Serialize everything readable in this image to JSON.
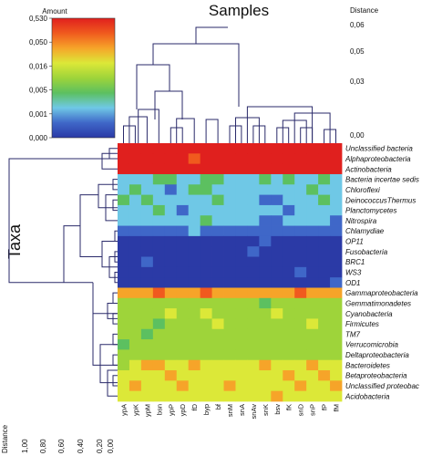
{
  "chart_data": {
    "type": "heatmap",
    "title": "Samples",
    "ylabel": "Taxa",
    "legend": {
      "title": "Amount",
      "ticks": [
        "0,530",
        "0,050",
        "0,016",
        "0,005",
        "0,001",
        "0,000"
      ],
      "placement": "top-left"
    },
    "colors": {
      "scale": [
        "#2b3aa6",
        "#3f67c8",
        "#6fc8e6",
        "#5cc060",
        "#9ed43a",
        "#dce838",
        "#f6a429",
        "#f05a1e",
        "#e0201e"
      ]
    },
    "top_distance_axis": {
      "label": "Distance",
      "ticks": [
        "0,06",
        "0,05",
        "0,03",
        "0,00"
      ]
    },
    "left_distance_axis": {
      "label": "Distance",
      "ticks": [
        "1,00",
        "0,80",
        "0,60",
        "0,40",
        "0,20",
        "0,00"
      ]
    },
    "columns": [
      "ypA",
      "ypK",
      "ypM",
      "bsn",
      "ypP",
      "ypD",
      "fD",
      "byp",
      "bf",
      "snM",
      "snA",
      "snAv",
      "snK",
      "bsv",
      "fK",
      "snD",
      "snP",
      "fP",
      "fM"
    ],
    "rows": [
      "Unclassified bacteria",
      "Alphaproteobacteria",
      "Actinobacteria",
      "Bacteria incertae sedis",
      "Chloroflexi",
      "DeinococcusThermus",
      "Planctomycetes",
      "Nitrospira",
      "Chlamydiae",
      "OP11",
      "Fusobacteria",
      "BRC1",
      "WS3",
      "OD1",
      "Gammaproteobacteria",
      "Gemmatimonadetes",
      "Cyanobacteria",
      "Firmicutes",
      "TM7",
      "Verrucomicrobia",
      "Deltaproteobacteria",
      "Bacteroidetes",
      "Betaproteobacteria",
      "Unclassified proteobac",
      "Acidobacteria"
    ],
    "values": [
      [
        8,
        8,
        8,
        8,
        8,
        8,
        8,
        8,
        8,
        8,
        8,
        8,
        8,
        8,
        8,
        8,
        8,
        8,
        8
      ],
      [
        8,
        8,
        8,
        8,
        8,
        8,
        7,
        8,
        8,
        8,
        8,
        8,
        8,
        8,
        8,
        8,
        8,
        8,
        8
      ],
      [
        8,
        8,
        8,
        8,
        8,
        8,
        8,
        8,
        8,
        8,
        8,
        8,
        8,
        8,
        8,
        8,
        8,
        8,
        8
      ],
      [
        2,
        2,
        2,
        3,
        3,
        2,
        2,
        3,
        3,
        2,
        2,
        2,
        3,
        2,
        3,
        2,
        2,
        3,
        2
      ],
      [
        2,
        3,
        2,
        2,
        1,
        2,
        3,
        3,
        2,
        2,
        2,
        2,
        2,
        2,
        2,
        2,
        3,
        2,
        2
      ],
      [
        3,
        2,
        3,
        2,
        2,
        2,
        2,
        2,
        3,
        2,
        2,
        2,
        1,
        1,
        2,
        2,
        2,
        3,
        2
      ],
      [
        2,
        2,
        2,
        3,
        2,
        1,
        2,
        2,
        2,
        2,
        2,
        2,
        2,
        2,
        1,
        2,
        2,
        2,
        2
      ],
      [
        2,
        2,
        2,
        2,
        2,
        2,
        2,
        3,
        2,
        2,
        2,
        2,
        1,
        1,
        2,
        2,
        2,
        2,
        1
      ],
      [
        1,
        1,
        1,
        1,
        1,
        1,
        2,
        1,
        1,
        1,
        1,
        1,
        1,
        1,
        1,
        1,
        1,
        1,
        1
      ],
      [
        0,
        0,
        0,
        0,
        0,
        0,
        0,
        0,
        0,
        0,
        0,
        0,
        1,
        0,
        0,
        0,
        0,
        0,
        0
      ],
      [
        0,
        0,
        0,
        0,
        0,
        0,
        0,
        0,
        0,
        0,
        0,
        1,
        0,
        0,
        0,
        0,
        0,
        0,
        0
      ],
      [
        0,
        0,
        1,
        0,
        0,
        0,
        0,
        0,
        0,
        0,
        0,
        0,
        0,
        0,
        0,
        0,
        0,
        0,
        0
      ],
      [
        0,
        0,
        0,
        0,
        0,
        0,
        0,
        0,
        0,
        0,
        0,
        0,
        0,
        0,
        0,
        1,
        0,
        0,
        0
      ],
      [
        0,
        0,
        0,
        0,
        0,
        0,
        0,
        0,
        0,
        0,
        0,
        0,
        0,
        0,
        0,
        0,
        0,
        0,
        1
      ],
      [
        6,
        6,
        6,
        7,
        6,
        6,
        6,
        7,
        6,
        6,
        6,
        6,
        6,
        6,
        6,
        7,
        6,
        6,
        6
      ],
      [
        4,
        4,
        4,
        4,
        4,
        4,
        4,
        4,
        4,
        4,
        4,
        4,
        3,
        4,
        4,
        4,
        4,
        4,
        4
      ],
      [
        4,
        4,
        4,
        4,
        5,
        4,
        4,
        5,
        4,
        4,
        4,
        4,
        4,
        5,
        4,
        4,
        4,
        4,
        4
      ],
      [
        4,
        4,
        4,
        3,
        4,
        4,
        4,
        4,
        5,
        4,
        4,
        4,
        4,
        4,
        4,
        4,
        5,
        4,
        4
      ],
      [
        4,
        4,
        3,
        4,
        4,
        4,
        4,
        4,
        4,
        4,
        4,
        4,
        4,
        4,
        4,
        4,
        4,
        4,
        4
      ],
      [
        3,
        4,
        4,
        4,
        4,
        4,
        4,
        4,
        4,
        4,
        4,
        4,
        4,
        4,
        4,
        4,
        4,
        4,
        4
      ],
      [
        4,
        4,
        4,
        4,
        4,
        4,
        4,
        4,
        4,
        4,
        4,
        4,
        4,
        4,
        4,
        4,
        4,
        4,
        4
      ],
      [
        4,
        5,
        6,
        6,
        5,
        5,
        6,
        5,
        5,
        5,
        5,
        5,
        6,
        5,
        5,
        5,
        6,
        5,
        5
      ],
      [
        5,
        5,
        5,
        5,
        6,
        5,
        5,
        5,
        5,
        5,
        5,
        5,
        5,
        5,
        6,
        5,
        5,
        6,
        5
      ],
      [
        5,
        6,
        5,
        5,
        5,
        6,
        5,
        5,
        5,
        6,
        5,
        5,
        5,
        5,
        5,
        6,
        5,
        5,
        6
      ],
      [
        5,
        5,
        5,
        5,
        5,
        5,
        5,
        5,
        5,
        5,
        5,
        5,
        5,
        6,
        5,
        5,
        5,
        5,
        5
      ]
    ]
  }
}
